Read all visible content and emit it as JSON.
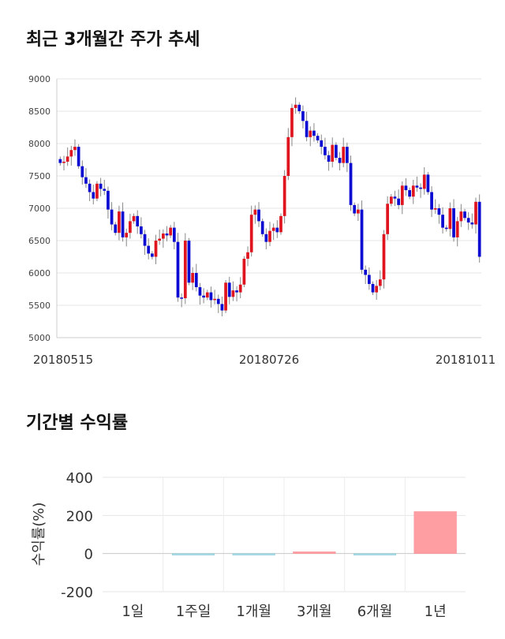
{
  "section1": {
    "title": "최근 3개월간 주가 추세"
  },
  "section2": {
    "title": "기간별 수익률"
  },
  "colors": {
    "up": "#e0141e",
    "down": "#0a0ad2",
    "wick": "#888888",
    "bar_positive": "#ff9ea2",
    "bar_negative": "#a8dce6"
  },
  "chart_data": [
    {
      "type": "candlestick",
      "title": "",
      "ylim": [
        5000,
        9000
      ],
      "yticks": [
        5000,
        5500,
        6000,
        6500,
        7000,
        7500,
        8000,
        8500,
        9000
      ],
      "xtick_labels": [
        "20180515",
        "20180726",
        "20181011"
      ],
      "grid": true,
      "closes": [
        7700,
        7720,
        7800,
        7900,
        7950,
        7650,
        7480,
        7380,
        7250,
        7150,
        7380,
        7300,
        7270,
        6980,
        6750,
        6620,
        6950,
        6550,
        6620,
        6800,
        6880,
        6720,
        6600,
        6420,
        6300,
        6250,
        6500,
        6530,
        6610,
        6580,
        6700,
        6480,
        5620,
        5610,
        6500,
        5850,
        6000,
        5780,
        5650,
        5620,
        5700,
        5580,
        5600,
        5520,
        5420,
        5850,
        5630,
        5730,
        5700,
        5820,
        6220,
        6320,
        6900,
        6980,
        6800,
        6600,
        6480,
        6650,
        6700,
        6630,
        6880,
        7500,
        8100,
        8550,
        8600,
        8500,
        8350,
        8100,
        8200,
        8120,
        8050,
        7950,
        7820,
        7720,
        7980,
        7780,
        7700,
        7950,
        7700,
        7050,
        6920,
        6980,
        6050,
        5970,
        5830,
        5700,
        5800,
        5900,
        6600,
        7070,
        7180,
        7150,
        7050,
        7350,
        7280,
        7180,
        7350,
        7320,
        7300,
        7520,
        7250,
        6980,
        7000,
        6900,
        6700,
        6680,
        7000,
        6550,
        6800,
        6950,
        6850,
        6780,
        6750,
        7100,
        6250
      ]
    },
    {
      "type": "bar",
      "title": "",
      "ylabel": "수익률(%)",
      "categories": [
        "1일",
        "1주일",
        "1개월",
        "3개월",
        "6개월",
        "1년"
      ],
      "values": [
        0.0,
        -1.0,
        -5.0,
        9.0,
        -7.0,
        220.0
      ],
      "ylim": [
        -200,
        400
      ],
      "yticks": [
        -200,
        0,
        200,
        400
      ],
      "grid": true
    }
  ]
}
